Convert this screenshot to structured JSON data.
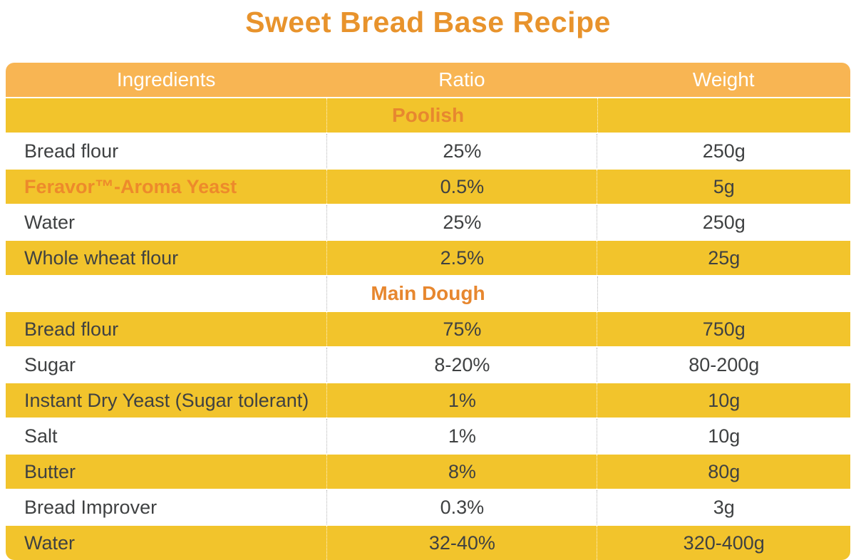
{
  "title": "Sweet Bread Base Recipe",
  "colors": {
    "title_orange": "#E8932C",
    "header_amber": "#F8B553",
    "row_yellow": "#F2C42C",
    "section_orange": "#E7872F",
    "brand_orange": "#ED8A2B",
    "text_dark": "#3F4142",
    "header_text": "#FFFFFF",
    "background": "#FFFFFF"
  },
  "table": {
    "columns": [
      "Ingredients",
      "Ratio",
      "Weight"
    ],
    "rows": [
      {
        "type": "section",
        "label": "Poolish"
      },
      {
        "type": "item",
        "ingredient": "Bread flour",
        "ratio": "25%",
        "weight": "250g"
      },
      {
        "type": "item",
        "ingredient": "Feravor™-Aroma Yeast",
        "ratio": "0.5%",
        "weight": "5g",
        "brand": true
      },
      {
        "type": "item",
        "ingredient": "Water",
        "ratio": "25%",
        "weight": "250g"
      },
      {
        "type": "item",
        "ingredient": "Whole wheat flour",
        "ratio": "2.5%",
        "weight": "25g"
      },
      {
        "type": "section",
        "label": "Main Dough"
      },
      {
        "type": "item",
        "ingredient": "Bread flour",
        "ratio": "75%",
        "weight": "750g"
      },
      {
        "type": "item",
        "ingredient": "Sugar",
        "ratio": "8-20%",
        "weight": "80-200g"
      },
      {
        "type": "item",
        "ingredient": "Instant Dry Yeast (Sugar tolerant)",
        "ratio": "1%",
        "weight": "10g"
      },
      {
        "type": "item",
        "ingredient": "Salt",
        "ratio": "1%",
        "weight": "10g"
      },
      {
        "type": "item",
        "ingredient": "Butter",
        "ratio": "8%",
        "weight": "80g"
      },
      {
        "type": "item",
        "ingredient": "Bread Improver",
        "ratio": "0.3%",
        "weight": "3g"
      },
      {
        "type": "item",
        "ingredient": "Water",
        "ratio": "32-40%",
        "weight": "320-400g"
      }
    ]
  }
}
